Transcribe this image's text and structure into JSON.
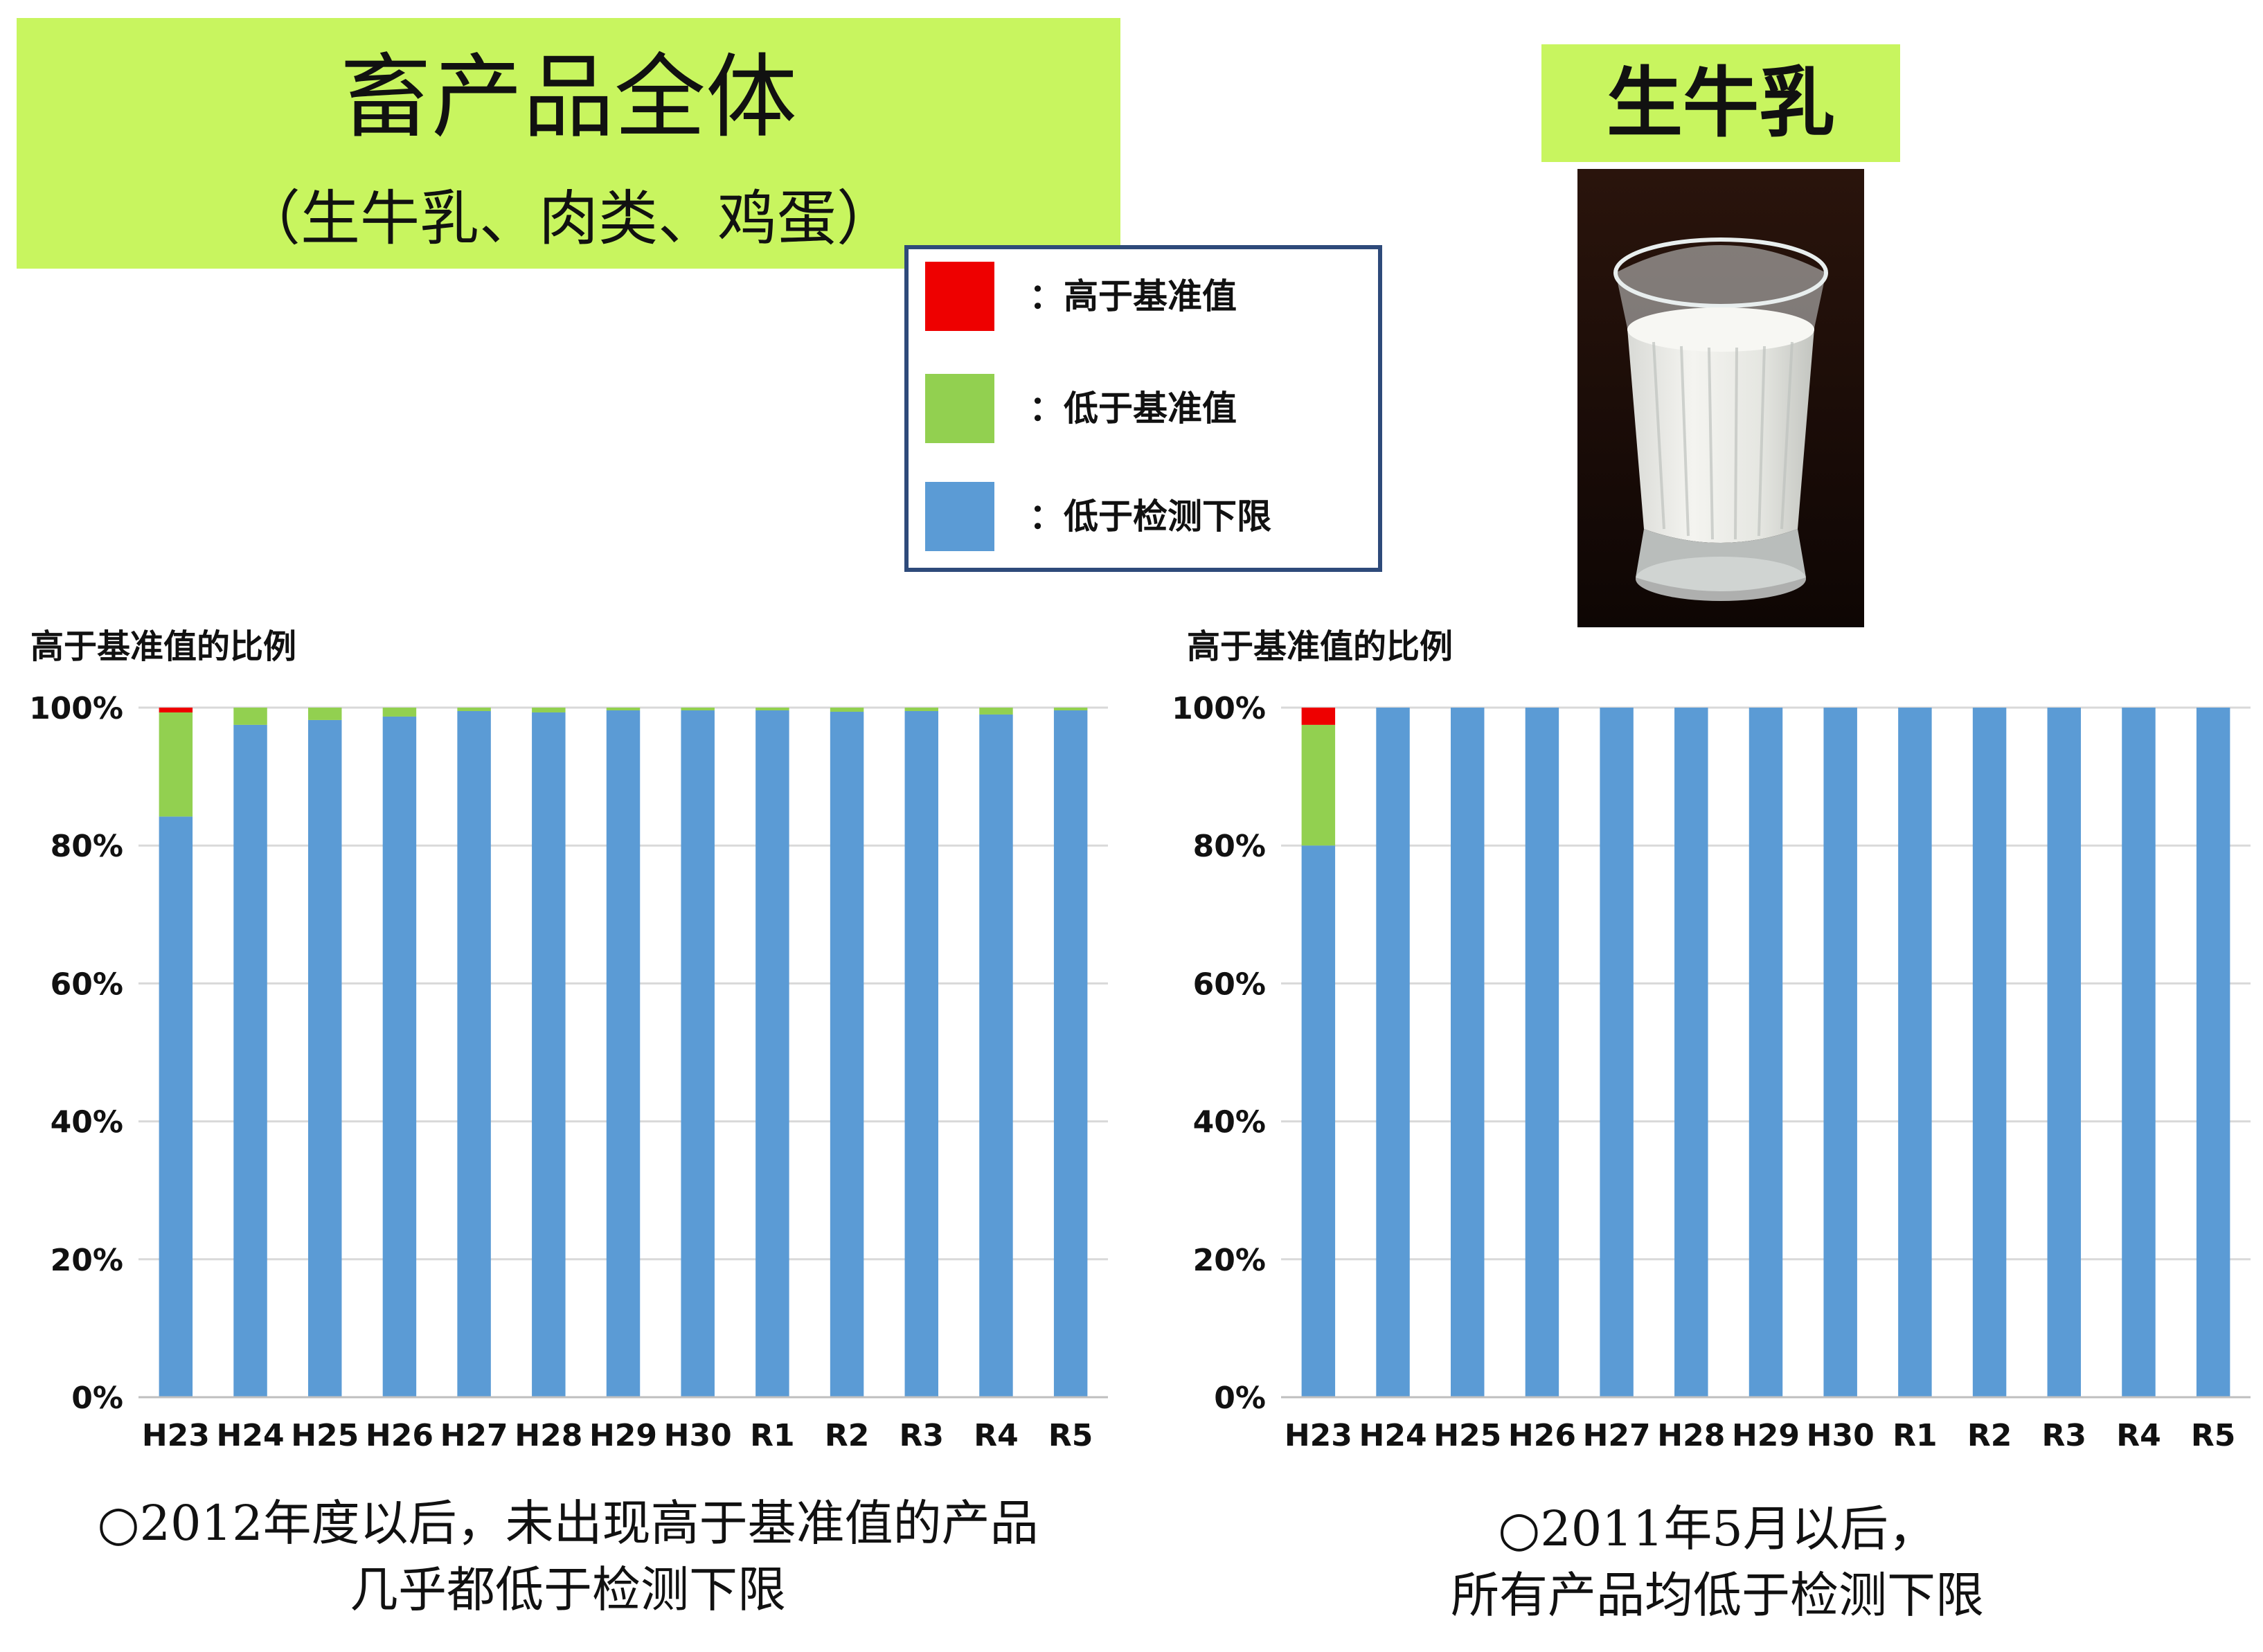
{
  "header": {
    "title": "畜产品全体",
    "subtitle": "（生牛乳、肉类、鸡蛋）",
    "milk_label": "生牛乳"
  },
  "legend": [
    {
      "label": "：高于基准值",
      "color": "#ee0000"
    },
    {
      "label": "：低于基准值",
      "color": "#92d050"
    },
    {
      "label": "：低于检测下限",
      "color": "#5b9bd5"
    }
  ],
  "chart_data": [
    {
      "type": "bar",
      "stacked": true,
      "ylabel": "高于基准值的比例",
      "ylim": [
        0,
        100
      ],
      "yticks": [
        "0%",
        "20%",
        "40%",
        "60%",
        "80%",
        "100%"
      ],
      "grid": true,
      "categories": [
        "H23",
        "H24",
        "H25",
        "H26",
        "H27",
        "H28",
        "H29",
        "H30",
        "R1",
        "R2",
        "R3",
        "R4",
        "R5"
      ],
      "series": [
        {
          "name": "：低于检测下限",
          "color": "#5b9bd5",
          "values": [
            84.2,
            97.5,
            98.2,
            98.7,
            99.5,
            99.3,
            99.6,
            99.6,
            99.6,
            99.4,
            99.5,
            99.0,
            99.6
          ]
        },
        {
          "name": "：低于基准值",
          "color": "#92d050",
          "values": [
            15.1,
            2.5,
            1.8,
            1.3,
            0.5,
            0.7,
            0.4,
            0.4,
            0.4,
            0.6,
            0.5,
            1.0,
            0.4
          ]
        },
        {
          "name": "：高于基准值",
          "color": "#ee0000",
          "values": [
            0.7,
            0,
            0,
            0,
            0,
            0,
            0,
            0,
            0,
            0,
            0,
            0,
            0
          ]
        }
      ]
    },
    {
      "type": "bar",
      "stacked": true,
      "ylabel": "高于基准值的比例",
      "ylim": [
        0,
        100
      ],
      "yticks": [
        "0%",
        "20%",
        "40%",
        "60%",
        "80%",
        "100%"
      ],
      "grid": true,
      "categories": [
        "H23",
        "H24",
        "H25",
        "H26",
        "H27",
        "H28",
        "H29",
        "H30",
        "R1",
        "R2",
        "R3",
        "R4",
        "R5"
      ],
      "series": [
        {
          "name": "：低于检测下限",
          "color": "#5b9bd5",
          "values": [
            80.0,
            100,
            100,
            100,
            100,
            100,
            100,
            100,
            100,
            100,
            100,
            100,
            100
          ]
        },
        {
          "name": "：低于基准值",
          "color": "#92d050",
          "values": [
            17.5,
            0,
            0,
            0,
            0,
            0,
            0,
            0,
            0,
            0,
            0,
            0,
            0
          ]
        },
        {
          "name": "：高于基准值",
          "color": "#ee0000",
          "values": [
            2.5,
            0,
            0,
            0,
            0,
            0,
            0,
            0,
            0,
            0,
            0,
            0,
            0
          ]
        }
      ]
    }
  ],
  "notes": {
    "left_line1": "○2012年度以后，未出现高于基准值的产品",
    "left_line2": "几乎都低于检测下限",
    "right_line1": "○2011年5月以后，",
    "right_line2": "所有产品均低于检测下限"
  }
}
